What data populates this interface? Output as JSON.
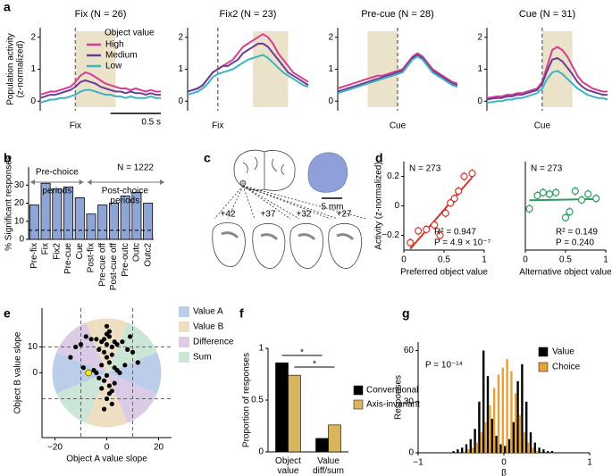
{
  "panel_labels": [
    "a",
    "b",
    "c",
    "d",
    "e",
    "f",
    "g"
  ],
  "brain_diagram": {
    "section_labels": [
      "+42",
      "+37",
      "+32",
      "+27"
    ],
    "scale_label": "5 mm"
  },
  "chart_data": [
    {
      "type": "line",
      "title": "Fix (N = 26)",
      "xlabel": "Fix",
      "ylabel": [
        "Population activity",
        "(z-normalized)"
      ],
      "legend_title": "Object value",
      "scale_bar": {
        "value": 0.5,
        "label": "0.5 s"
      },
      "xlim": [
        -0.35,
        0.85
      ],
      "ylim": [
        -0.3,
        2.3
      ],
      "yticks": [
        0,
        1,
        2
      ],
      "event": 0,
      "shaded_window": [
        0,
        0.4
      ],
      "shade_color": "#ebe3c9",
      "x": [
        -0.35,
        -0.3,
        -0.25,
        -0.2,
        -0.15,
        -0.1,
        -0.05,
        0,
        0.05,
        0.1,
        0.15,
        0.2,
        0.25,
        0.3,
        0.35,
        0.4,
        0.45,
        0.5,
        0.55,
        0.6,
        0.65,
        0.7,
        0.75,
        0.8,
        0.85
      ],
      "series": [
        {
          "name": "High",
          "color": "#d63f8f",
          "values": [
            0.2,
            0.25,
            0.3,
            0.3,
            0.35,
            0.4,
            0.45,
            0.6,
            0.8,
            0.9,
            0.85,
            0.75,
            0.65,
            0.55,
            0.5,
            0.45,
            0.4,
            0.4,
            0.35,
            0.4,
            0.35,
            0.3,
            0.35,
            0.3,
            0.3
          ]
        },
        {
          "name": "Medium",
          "color": "#6b3d96",
          "values": [
            0.1,
            0.15,
            0.2,
            0.2,
            0.25,
            0.3,
            0.35,
            0.45,
            0.6,
            0.65,
            0.6,
            0.55,
            0.45,
            0.4,
            0.35,
            0.3,
            0.3,
            0.25,
            0.3,
            0.25,
            0.25,
            0.2,
            0.25,
            0.2,
            0.2
          ]
        },
        {
          "name": "Low",
          "color": "#3fb3c0",
          "values": [
            -0.05,
            0,
            0.05,
            0.05,
            0.1,
            0.1,
            0.15,
            0.2,
            0.3,
            0.35,
            0.35,
            0.3,
            0.25,
            0.2,
            0.2,
            0.15,
            0.15,
            0.1,
            0.15,
            0.1,
            0.1,
            0.1,
            0.15,
            0.1,
            0.1
          ]
        }
      ]
    },
    {
      "type": "line",
      "title": "Fix2 (N = 23)",
      "xlabel": "Fix",
      "xlim": [
        -0.3,
        0.9
      ],
      "ylim": [
        -0.3,
        2.3
      ],
      "yticks": [
        0,
        1,
        2
      ],
      "event": 0,
      "shaded_window": [
        0.35,
        0.7
      ],
      "shade_color": "#ebe3c9",
      "x": [
        -0.3,
        -0.25,
        -0.2,
        -0.15,
        -0.1,
        -0.05,
        0,
        0.05,
        0.1,
        0.15,
        0.2,
        0.25,
        0.3,
        0.35,
        0.4,
        0.45,
        0.5,
        0.55,
        0.6,
        0.65,
        0.7,
        0.75,
        0.8,
        0.85,
        0.9
      ],
      "series": [
        {
          "color": "#d63f8f",
          "values": [
            0.3,
            0.35,
            0.4,
            0.5,
            0.7,
            0.9,
            1.0,
            1.1,
            1.2,
            1.3,
            1.5,
            1.7,
            1.8,
            1.9,
            2.0,
            2.1,
            2.0,
            1.8,
            1.5,
            1.3,
            1.1,
            0.9,
            0.8,
            0.7,
            0.6
          ]
        },
        {
          "color": "#6b3d96",
          "values": [
            0.3,
            0.35,
            0.4,
            0.5,
            0.7,
            0.9,
            1.0,
            1.1,
            1.1,
            1.2,
            1.3,
            1.5,
            1.6,
            1.7,
            1.8,
            1.8,
            1.7,
            1.5,
            1.3,
            1.1,
            0.9,
            0.8,
            0.7,
            0.6,
            0.5
          ]
        },
        {
          "color": "#3fb3c0",
          "values": [
            0.2,
            0.25,
            0.3,
            0.4,
            0.55,
            0.75,
            0.85,
            0.9,
            0.95,
            1.0,
            1.1,
            1.2,
            1.3,
            1.35,
            1.4,
            1.45,
            1.35,
            1.2,
            1.05,
            0.9,
            0.8,
            0.7,
            0.6,
            0.5,
            0.45
          ]
        }
      ]
    },
    {
      "type": "line",
      "title": "Pre-cue (N = 28)",
      "xlabel": "Cue",
      "xlim": [
        -0.6,
        0.6
      ],
      "ylim": [
        -0.3,
        2.3
      ],
      "yticks": [
        0,
        1,
        2
      ],
      "event": 0,
      "shaded_window": [
        -0.3,
        0
      ],
      "shade_color": "#ebe3c9",
      "x": [
        -0.6,
        -0.55,
        -0.5,
        -0.45,
        -0.4,
        -0.35,
        -0.3,
        -0.25,
        -0.2,
        -0.15,
        -0.1,
        -0.05,
        0,
        0.05,
        0.1,
        0.15,
        0.2,
        0.25,
        0.3,
        0.35,
        0.4,
        0.45,
        0.5,
        0.55,
        0.6
      ],
      "series": [
        {
          "color": "#d63f8f",
          "values": [
            0.4,
            0.45,
            0.5,
            0.55,
            0.6,
            0.65,
            0.7,
            0.75,
            0.8,
            0.8,
            0.85,
            0.9,
            0.95,
            1.0,
            1.2,
            1.4,
            1.5,
            1.4,
            1.2,
            1.0,
            0.9,
            0.8,
            0.7,
            0.6,
            0.55
          ]
        },
        {
          "color": "#6b3d96",
          "values": [
            0.3,
            0.35,
            0.4,
            0.45,
            0.5,
            0.55,
            0.6,
            0.65,
            0.7,
            0.75,
            0.8,
            0.85,
            0.9,
            0.95,
            1.15,
            1.35,
            1.45,
            1.35,
            1.15,
            0.95,
            0.85,
            0.75,
            0.65,
            0.55,
            0.5
          ]
        },
        {
          "color": "#3fb3c0",
          "values": [
            0.25,
            0.3,
            0.35,
            0.4,
            0.45,
            0.5,
            0.55,
            0.6,
            0.65,
            0.7,
            0.75,
            0.8,
            0.85,
            0.9,
            1.1,
            1.3,
            1.4,
            1.3,
            1.1,
            0.9,
            0.8,
            0.7,
            0.6,
            0.5,
            0.45
          ]
        }
      ]
    },
    {
      "type": "line",
      "title": "Cue (N = 31)",
      "xlabel": "Cue",
      "xlim": [
        -0.55,
        0.65
      ],
      "ylim": [
        -0.3,
        2.3
      ],
      "yticks": [
        0,
        1,
        2
      ],
      "event": 0,
      "shaded_window": [
        0,
        0.3
      ],
      "shade_color": "#ebe3c9",
      "x": [
        -0.55,
        -0.5,
        -0.45,
        -0.4,
        -0.35,
        -0.3,
        -0.25,
        -0.2,
        -0.15,
        -0.1,
        -0.05,
        0,
        0.05,
        0.1,
        0.15,
        0.2,
        0.25,
        0.3,
        0.35,
        0.4,
        0.45,
        0.5,
        0.55,
        0.6,
        0.65
      ],
      "series": [
        {
          "color": "#d63f8f",
          "values": [
            0.1,
            0.12,
            0.15,
            0.15,
            0.2,
            0.2,
            0.25,
            0.25,
            0.3,
            0.35,
            0.4,
            0.6,
            1.1,
            1.6,
            1.7,
            1.6,
            1.4,
            1.1,
            0.8,
            0.6,
            0.5,
            0.4,
            0.35,
            0.3,
            0.3
          ]
        },
        {
          "color": "#6b3d96",
          "values": [
            0.05,
            0.08,
            0.1,
            0.1,
            0.15,
            0.15,
            0.2,
            0.2,
            0.25,
            0.3,
            0.35,
            0.55,
            0.95,
            1.3,
            1.35,
            1.25,
            1.05,
            0.85,
            0.6,
            0.45,
            0.35,
            0.3,
            0.25,
            0.2,
            0.2
          ]
        },
        {
          "color": "#3fb3c0",
          "values": [
            -0.05,
            -0.03,
            0,
            0,
            0.05,
            0.05,
            0.1,
            0.1,
            0.15,
            0.2,
            0.25,
            0.4,
            0.7,
            0.9,
            0.95,
            0.85,
            0.7,
            0.55,
            0.4,
            0.3,
            0.2,
            0.15,
            0.1,
            0.1,
            0.05
          ]
        }
      ]
    },
    {
      "type": "bar",
      "ylabel": "% Significant responses",
      "color": "#8ea5d6",
      "categories": [
        "Pre-fix",
        "Fix",
        "Fix2",
        "Pre-cue",
        "Cue",
        "Post-fix",
        "Pre-cue off",
        "Post-cue off",
        "Pre-outc",
        "Outc",
        "Outc2"
      ],
      "values": [
        19,
        31,
        28,
        29,
        23,
        14,
        19,
        20,
        24,
        26,
        20
      ],
      "ylim": [
        0,
        40
      ],
      "yticks": [
        0,
        10,
        20,
        30
      ],
      "reference_line": 5,
      "pre_label": [
        "Pre-choice",
        "periods"
      ],
      "post_label": [
        "Post-choice",
        "periods"
      ],
      "n_label": "N = 1222"
    },
    {
      "type": "scatter",
      "n_label": "N = 273",
      "stats": [
        "R² = 0.947",
        "P = 4.9 × 10⁻⁷"
      ],
      "xlabel": "Preferred object value",
      "ylabel": "Activity (z-normalized)",
      "color": "#d9342b",
      "xlim": [
        0,
        1
      ],
      "xticks": [
        0,
        0.5,
        1
      ],
      "ylim": [
        -0.3,
        0.3
      ],
      "yticks": [
        {
          "value": -0.2,
          "label": "−0.2"
        },
        0,
        0.2
      ],
      "x": [
        0.08,
        0.18,
        0.28,
        0.38,
        0.45,
        0.52,
        0.58,
        0.63,
        0.68,
        0.75,
        0.85
      ],
      "values": [
        -0.25,
        -0.17,
        -0.16,
        -0.13,
        -0.2,
        -0.05,
        0.02,
        0.05,
        0.1,
        0.2,
        0.22
      ],
      "errors": [
        0.03,
        0.03,
        0.03,
        0.03,
        0.03,
        0.03,
        0.03,
        0.03,
        0.03,
        0.03,
        0.03
      ]
    },
    {
      "type": "scatter",
      "n_label": "N = 273",
      "stats": [
        "R² = 0.149",
        "P = 0.240"
      ],
      "xlabel": "Alternative object value",
      "color": "#2f9a5f",
      "xlim": [
        0,
        1
      ],
      "xticks": [
        0,
        0.5,
        1
      ],
      "ylim": [
        -0.3,
        0.3
      ],
      "x": [
        0.05,
        0.15,
        0.22,
        0.3,
        0.38,
        0.5,
        0.55,
        0.62,
        0.7,
        0.78,
        0.88
      ],
      "values": [
        -0.02,
        0.07,
        0.09,
        0.08,
        0.09,
        -0.08,
        -0.04,
        0.1,
        0.04,
        0.08,
        0.05
      ],
      "errors": [
        0.03,
        0.03,
        0.03,
        0.03,
        0.03,
        0.03,
        0.03,
        0.03,
        0.03,
        0.03,
        0.03
      ]
    },
    {
      "type": "quadrant",
      "xlabel": "Object A value slope",
      "ylabel": "Object B value slope",
      "xlim": [
        -25,
        25
      ],
      "xticks": [
        {
          "value": -20,
          "label": "−20"
        },
        0,
        20
      ],
      "ylim": [
        -25,
        25
      ],
      "yticks": [
        0,
        10
      ],
      "guide_lines": [
        -10,
        10
      ],
      "sectors": [
        {
          "name": "Value A",
          "color": "#bccde9"
        },
        {
          "name": "Value B",
          "color": "#eedfc3"
        },
        {
          "name": "Difference",
          "color": "#dccbe6"
        },
        {
          "name": "Sum",
          "color": "#cbe5d7"
        }
      ],
      "color": "#000000",
      "x": [
        -2,
        -1,
        0,
        1,
        2,
        3,
        -3,
        0,
        1,
        -1,
        2,
        4,
        -4,
        0,
        1,
        -2,
        3,
        -5,
        5,
        0,
        -1,
        1,
        2,
        -8,
        -6,
        -10,
        -12,
        6,
        8,
        9,
        10,
        -3,
        0,
        2,
        -1,
        1,
        3,
        -2,
        4,
        -4,
        0,
        -9,
        7,
        12,
        -14
      ],
      "y": [
        12,
        13,
        11,
        14,
        10,
        12,
        9,
        15,
        16,
        8,
        7,
        11,
        13,
        6,
        4,
        3,
        2,
        1,
        0,
        -1,
        -3,
        -5,
        -7,
        14,
        13,
        11,
        10,
        12,
        9,
        14,
        8,
        -2,
        -10,
        -12,
        -14,
        -8,
        -4,
        -6,
        1,
        0,
        18,
        2,
        3,
        4,
        6
      ],
      "highlight": {
        "x": -7,
        "y": 0,
        "color": "#f2e600"
      }
    },
    {
      "type": "grouped_bar",
      "ylabel": "Proportion of responses",
      "categories": [
        "Object value",
        "Value diff/sum"
      ],
      "series": [
        {
          "name": "Conventional",
          "color": "#000000",
          "values": [
            0.86,
            0.13
          ]
        },
        {
          "name": "Axis-invariant",
          "color": "#d9b45e",
          "values": [
            0.74,
            0.26
          ]
        }
      ],
      "ylim": [
        0,
        1
      ],
      "yticks": [
        0,
        0.5,
        1
      ],
      "significance": [
        "*",
        "*"
      ]
    },
    {
      "type": "histogram",
      "ylabel": "Responses",
      "xlabel": "β",
      "p_label": "P = 10⁻¹⁴",
      "xlim": [
        -1,
        1
      ],
      "xticks": [
        {
          "value": -1,
          "label": "−1"
        },
        0,
        1
      ],
      "ylim": [
        0,
        65
      ],
      "yticks": [
        0,
        30,
        60
      ],
      "bins": [
        -0.6,
        -0.55,
        -0.5,
        -0.45,
        -0.4,
        -0.35,
        -0.3,
        -0.25,
        -0.2,
        -0.15,
        -0.1,
        -0.05,
        0,
        0.05,
        0.1,
        0.15,
        0.2,
        0.25,
        0.3,
        0.35,
        0.4,
        0.45,
        0.5,
        0.55,
        0.6
      ],
      "series": [
        {
          "name": "Value",
          "color": "#000000",
          "values": [
            1,
            2,
            3,
            5,
            8,
            14,
            30,
            60,
            45,
            20,
            10,
            5,
            4,
            8,
            18,
            42,
            52,
            30,
            12,
            6,
            3,
            2,
            1,
            1
          ]
        },
        {
          "name": "Choice",
          "color": "#e5a23a",
          "values": [
            0,
            0,
            1,
            2,
            3,
            6,
            12,
            18,
            28,
            38,
            46,
            50,
            55,
            48,
            35,
            22,
            12,
            6,
            3,
            1,
            0,
            0,
            0,
            0
          ]
        }
      ]
    }
  ]
}
